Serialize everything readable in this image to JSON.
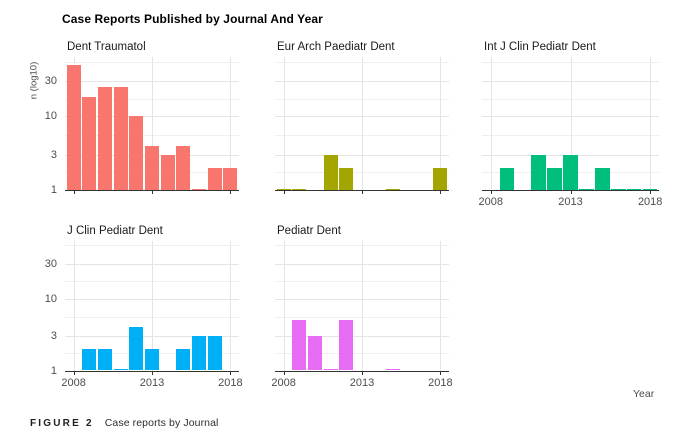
{
  "header": {
    "title": "Case Reports Published by Journal And Year"
  },
  "axes": {
    "y_title": "n (log10)",
    "x_title": "Year"
  },
  "caption": {
    "label": "FIGURE 2",
    "text": "Case reports by Journal"
  },
  "chart_data": {
    "type": "bar",
    "title": "Case Reports Published by Journal And Year",
    "xlabel": "Year",
    "ylabel": "n (log10)",
    "scale_y": "log10",
    "x_ticks": [
      2008,
      2013,
      2018
    ],
    "y_ticks": [
      30,
      10,
      3,
      1
    ],
    "x_range": [
      2008,
      2018
    ],
    "y_range_log10": [
      1,
      63
    ],
    "grid": "major-and-minor-horizontal, major-vertical",
    "legend": "none (facet per journal)",
    "facets": [
      {
        "journal": "Dent Traumatol",
        "color": "#F8766D",
        "data": {
          "2008": 50,
          "2009": 18,
          "2010": 25,
          "2011": 25,
          "2012": 10,
          "2013": 4,
          "2014": 3,
          "2015": 4,
          "2016": 1,
          "2017": 2,
          "2018": 2
        }
      },
      {
        "journal": "Eur Arch Paediatr Dent",
        "color": "#A3A500",
        "data": {
          "2008": 1,
          "2009": 1,
          "2011": 3,
          "2012": 2,
          "2015": 1,
          "2018": 2
        }
      },
      {
        "journal": "Int J Clin Pediatr Dent",
        "color": "#00BF7D",
        "data": {
          "2009": 2,
          "2011": 3,
          "2012": 2,
          "2013": 3,
          "2014": 1,
          "2015": 2,
          "2016": 1,
          "2017": 1,
          "2018": 1
        }
      },
      {
        "journal": "J Clin Pediatr Dent",
        "color": "#00B0F6",
        "data": {
          "2009": 2,
          "2010": 2,
          "2011": 1,
          "2012": 4,
          "2013": 2,
          "2015": 2,
          "2016": 3,
          "2017": 3
        }
      },
      {
        "journal": "Pediatr Dent",
        "color": "#E76BF3",
        "data": {
          "2009": 5,
          "2010": 3,
          "2011": 1,
          "2012": 5,
          "2015": 1
        }
      }
    ]
  }
}
